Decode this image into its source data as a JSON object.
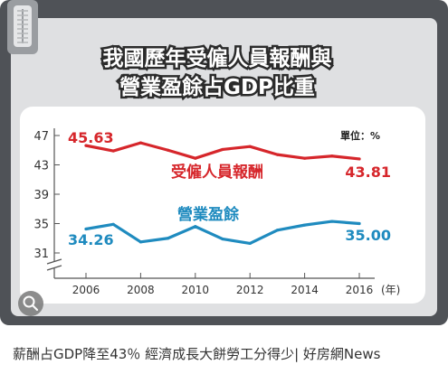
{
  "chart_data": {
    "type": "line",
    "title_line1": "我國歷年受僱人員報酬與",
    "title_line2": "營業盈餘占GDP比重",
    "unit_label": "單位：%",
    "x": [
      2006,
      2007,
      2008,
      2009,
      2010,
      2011,
      2012,
      2013,
      2014,
      2015,
      2016
    ],
    "x_ticks": [
      "2006",
      "2008",
      "2010",
      "2012",
      "2014",
      "2016"
    ],
    "x_unit": "(年)",
    "y_ticks": [
      "47",
      "43",
      "39",
      "35",
      "31"
    ],
    "ylim": [
      29.5,
      47
    ],
    "axis_break": true,
    "grid": false,
    "series": [
      {
        "name": "受僱人員報酬",
        "color": "#d6262b",
        "values": [
          45.63,
          44.9,
          46.0,
          45.0,
          43.9,
          45.1,
          45.5,
          44.4,
          43.9,
          44.2,
          43.81
        ],
        "start_label": "45.63",
        "end_label": "43.81"
      },
      {
        "name": "營業盈餘",
        "color": "#1f8bbf",
        "values": [
          34.26,
          34.9,
          32.5,
          33.0,
          34.6,
          32.9,
          32.3,
          34.1,
          34.8,
          35.3,
          35.0
        ],
        "start_label": "34.26",
        "end_label": "35.00"
      }
    ]
  },
  "caption": "薪酬占GDP降至43％ 經濟成長大餅勞工分得少| 好房網News",
  "icons": {
    "search": "magnifier-lens-icon",
    "zipper": "zipper-tab-icon"
  }
}
